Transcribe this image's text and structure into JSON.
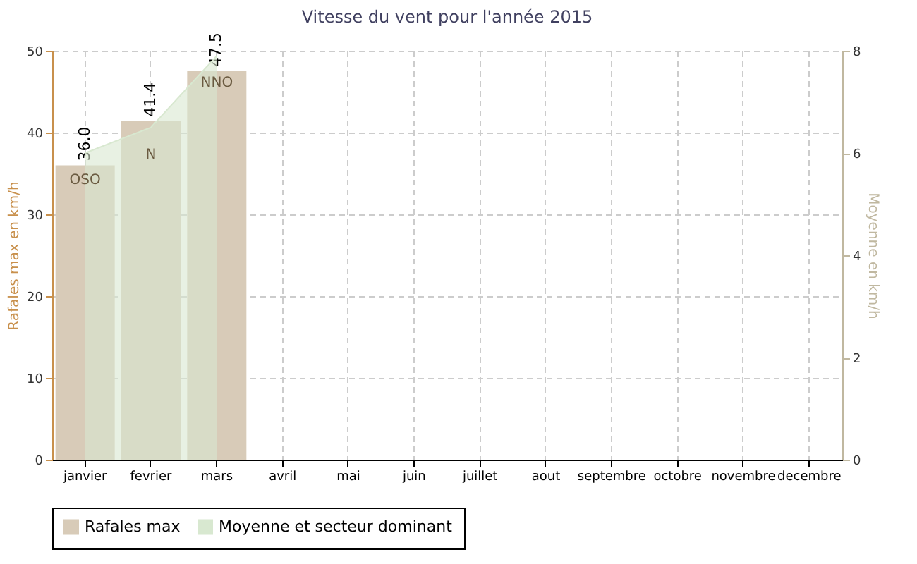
{
  "chart_data": {
    "type": "bar",
    "title": "Vitesse du vent pour l'année 2015",
    "ylabel": "Rafales max en km/h",
    "y2label": "Moyenne en km/h",
    "categories": [
      "janvier",
      "fevrier",
      "mars",
      "avril",
      "mai",
      "juin",
      "juillet",
      "aout",
      "septembre",
      "octobre",
      "novembre",
      "decembre"
    ],
    "series": [
      {
        "name": "Rafales max",
        "color": "#d8cbb8",
        "values": [
          36.0,
          41.4,
          47.5,
          null,
          null,
          null,
          null,
          null,
          null,
          null,
          null,
          null
        ],
        "value_labels": [
          "36.0",
          "41.4",
          "47.5",
          null,
          null,
          null,
          null,
          null,
          null,
          null,
          null,
          null
        ]
      },
      {
        "name": "Moyenne et secteur dominant",
        "type": "area",
        "axis": "y2",
        "color": "#d8e8d0",
        "values": [
          6.0,
          6.5,
          7.9,
          null,
          null,
          null,
          null,
          null,
          null,
          null,
          null,
          null
        ]
      }
    ],
    "annotations": [
      "OSO",
      "N",
      "NNO"
    ],
    "ylim": [
      0,
      50
    ],
    "yticks": [
      0,
      10,
      20,
      30,
      40,
      50
    ],
    "y2lim": [
      0,
      8
    ],
    "y2ticks": [
      0,
      2,
      4,
      6,
      8
    ],
    "grid": true,
    "legend": "bottom"
  }
}
